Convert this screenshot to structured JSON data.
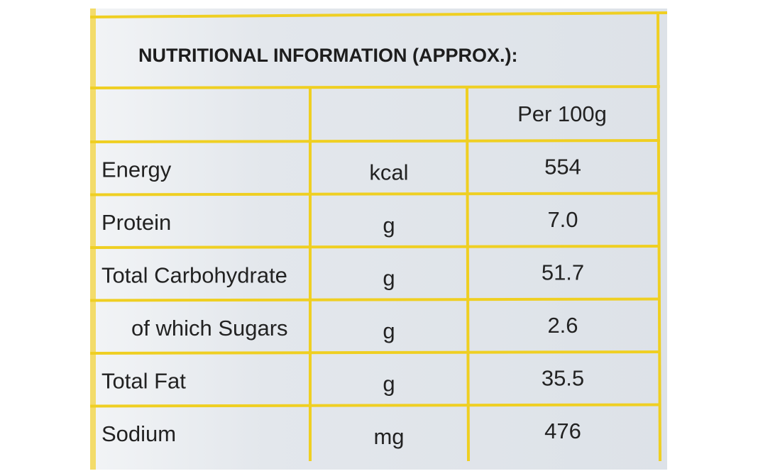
{
  "header": {
    "title": "NUTRITIONAL INFORMATION (APPROX.):"
  },
  "table": {
    "column_header": "Per 100g",
    "rows": [
      [
        "Energy",
        "kcal",
        "554"
      ],
      [
        "Protein",
        "g",
        "7.0"
      ],
      [
        "Total Carbohydrate",
        "g",
        "51.7"
      ],
      [
        "of which Sugars",
        "g",
        "2.6"
      ],
      [
        "Total Fat",
        "g",
        "35.5"
      ],
      [
        "Sodium",
        "mg",
        "476"
      ]
    ]
  }
}
